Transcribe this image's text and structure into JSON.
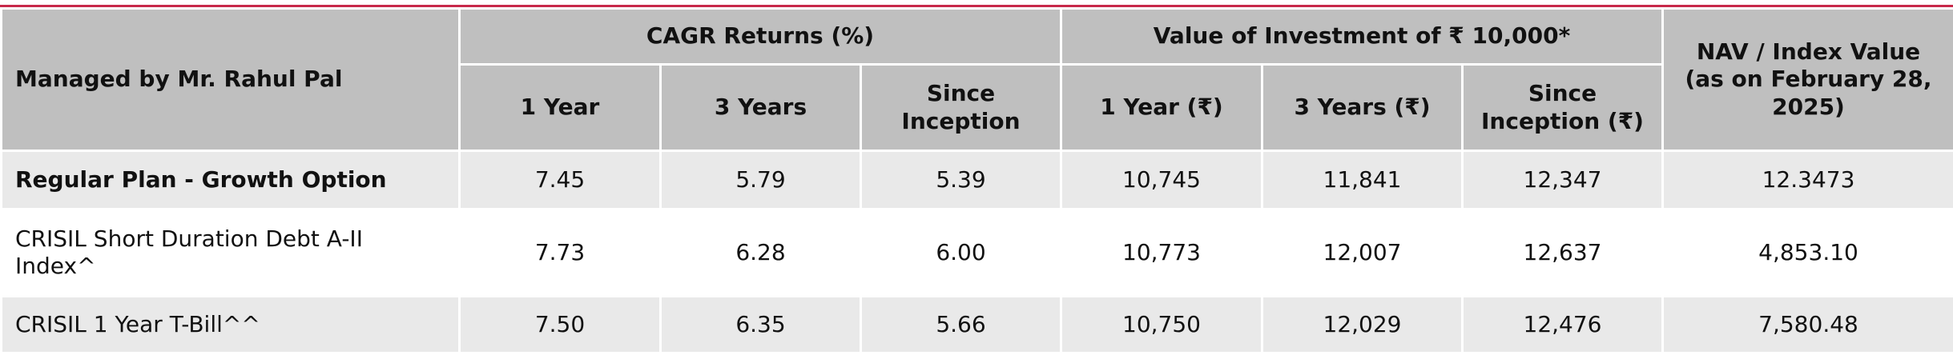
{
  "header": {
    "managed_by": "Managed by Mr. Rahul Pal",
    "groups": [
      "CAGR Returns (%)",
      "Value of Investment of ₹ 10,000*"
    ],
    "nav": "NAV / Index Value (as on February 28, 2025)",
    "columns": [
      "1 Year",
      "3 Years",
      "Since Inception",
      "1 Year (₹)",
      "3 Years (₹)",
      "Since Inception (₹)"
    ]
  },
  "table": {
    "rows": [
      [
        "Regular Plan - Growth Option",
        "7.45",
        "5.79",
        "5.39",
        "10,745",
        "11,841",
        "12,347",
        "12.3473"
      ],
      [
        "CRISIL Short Duration Debt A-II Index^",
        "7.73",
        "6.28",
        "6.00",
        "10,773",
        "12,007",
        "12,637",
        "4,853.10"
      ],
      [
        "CRISIL 1 Year T-Bill^^",
        "7.50",
        "6.35",
        "5.66",
        "10,750",
        "12,029",
        "12,476",
        "7,580.48"
      ]
    ]
  }
}
